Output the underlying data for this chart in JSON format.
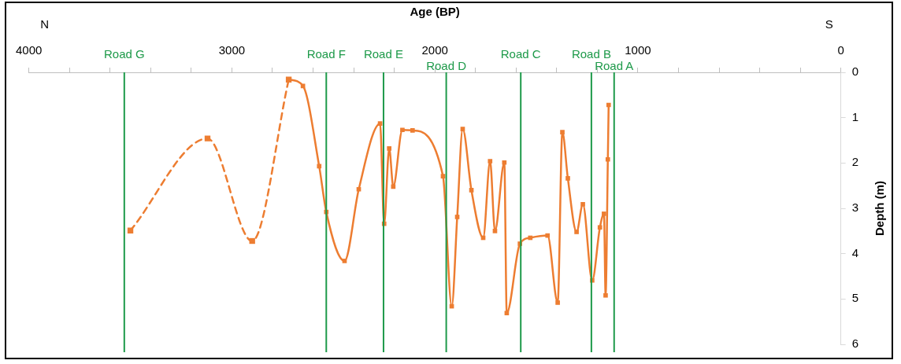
{
  "chart_data": {
    "type": "line",
    "xlabel": "Age (BP)",
    "ylabel": "Depth (m)",
    "annotations": [
      "N",
      "S"
    ],
    "xlim": [
      4000,
      0
    ],
    "xticks": [
      4000,
      {
        "value": 3800,
        "label": null
      },
      {
        "value": 3600,
        "label": null
      },
      {
        "value": 3400,
        "label": null
      },
      {
        "value": 3200,
        "label": null
      },
      3000,
      {
        "value": 2800,
        "label": null
      },
      {
        "value": 2600,
        "label": null
      },
      {
        "value": 2400,
        "label": null
      },
      {
        "value": 2200,
        "label": null
      },
      2000,
      {
        "value": 1800,
        "label": null
      },
      {
        "value": 1600,
        "label": null
      },
      {
        "value": 1400,
        "label": null
      },
      {
        "value": 1200,
        "label": null
      },
      1000,
      {
        "value": 800,
        "label": null
      },
      {
        "value": 600,
        "label": null
      },
      {
        "value": 400,
        "label": null
      },
      {
        "value": 200,
        "label": null
      },
      0
    ],
    "ylim": [
      6,
      0
    ],
    "yticks": [
      0,
      1,
      2,
      3,
      4,
      5,
      6
    ],
    "grid": false,
    "legend": false,
    "marker": "square",
    "series": [
      {
        "color": "#ed7d31",
        "line_style": "dashed",
        "x": [
          3500,
          3120,
          2900,
          2720
        ],
        "values": [
          3.49,
          1.46,
          3.72,
          0.16
        ]
      },
      {
        "color": "#ed7d31",
        "line_style": "solid",
        "x": [
          2720,
          2650,
          2570,
          2535,
          2445,
          2375,
          2270,
          2250,
          2225,
          2205,
          2160,
          2110,
          1960,
          1917,
          1890,
          1863,
          1820,
          1762,
          1728,
          1704,
          1658,
          1646,
          1581,
          1530,
          1445,
          1395,
          1372,
          1345,
          1302,
          1271,
          1225,
          1187,
          1167,
          1159,
          1148,
          1144
        ],
        "values": [
          0.16,
          0.3,
          2.07,
          3.08,
          4.16,
          2.58,
          1.13,
          3.34,
          1.68,
          2.52,
          1.27,
          1.28,
          2.29,
          5.16,
          3.19,
          1.25,
          2.6,
          3.65,
          1.96,
          3.5,
          1.99,
          5.31,
          3.78,
          3.65,
          3.6,
          5.08,
          1.32,
          2.34,
          3.52,
          2.91,
          4.59,
          3.42,
          3.12,
          4.92,
          1.92,
          0.72
        ]
      }
    ],
    "ref_lines": [
      {
        "axis": "x",
        "value": 3530,
        "label": "Road G",
        "color": "#1e9a4a"
      },
      {
        "axis": "x",
        "value": 2535,
        "label": "Road F",
        "color": "#1e9a4a"
      },
      {
        "axis": "x",
        "value": 2253,
        "label": "Road E",
        "color": "#1e9a4a"
      },
      {
        "axis": "x",
        "value": 1944,
        "label": "Road D",
        "color": "#1e9a4a"
      },
      {
        "axis": "x",
        "value": 1577,
        "label": "Road C",
        "color": "#1e9a4a"
      },
      {
        "axis": "x",
        "value": 1229,
        "label": "Road B",
        "color": "#1e9a4a"
      },
      {
        "axis": "x",
        "value": 1117,
        "label": "Road A",
        "color": "#1e9a4a"
      }
    ]
  }
}
